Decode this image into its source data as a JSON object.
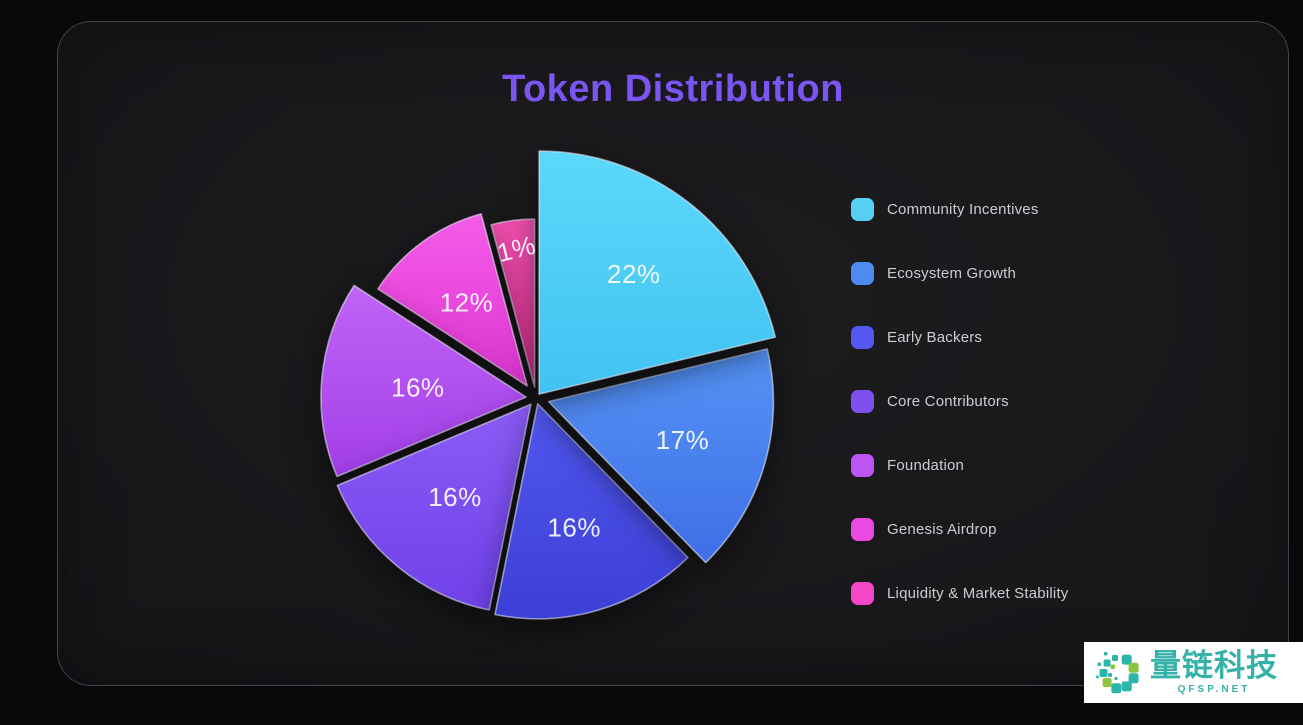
{
  "page": {
    "background_color": "#09090b",
    "panel_background": "#17171a",
    "panel_border_color": "#8a9098"
  },
  "chart_data": {
    "type": "pie",
    "title": "Token Distribution",
    "title_color": "#7b55f2",
    "unit": "%",
    "categories": [
      "Community Incentives",
      "Ecosystem Growth",
      "Early Backers",
      "Core Contributors",
      "Foundation",
      "Genesis Airdrop",
      "Liquidity & Market Stability"
    ],
    "values": [
      22,
      17,
      16,
      16,
      16,
      12,
      1
    ],
    "colors": [
      "#57d0f4",
      "#4d8bf0",
      "#5557f2",
      "#7e50f0",
      "#bb55f3",
      "#ea4ae2",
      "#f447c8"
    ],
    "slice_gradients": [
      [
        "#5cd8fb",
        "#41c2f2"
      ],
      [
        "#5594f6",
        "#3f6ee6"
      ],
      [
        "#5158f0",
        "#3c3fd6"
      ],
      [
        "#8a5cf6",
        "#6f41e8"
      ],
      [
        "#c063f6",
        "#a23fe8"
      ],
      [
        "#f55ce9",
        "#dd35d0"
      ],
      [
        "#f150b0",
        "#d62f8d"
      ]
    ],
    "label_color": "rgba(255,255,255,0.9)",
    "legend_position": "right",
    "legend_text_color": "#cbcdd1",
    "layout": {
      "center": [
        478,
        376
      ],
      "radii": [
        243,
        225,
        215,
        210,
        205,
        178,
        168
      ],
      "explode": [
        5,
        13,
        6,
        8,
        10,
        15,
        11
      ],
      "label_dist": [
        0.63,
        0.62,
        0.6,
        0.57,
        0.53,
        0.58,
        0.83
      ],
      "label_rotate": [
        0,
        0,
        0,
        0,
        0,
        0,
        -14
      ],
      "min_angle_deg": 15,
      "start_angle_deg": 0
    }
  },
  "watermark": {
    "brand": "量链科技",
    "domain": "QFSP.NET",
    "text_color": "#35b2a7",
    "background": "#ffffff",
    "logo_teal": "#2cb5a8",
    "logo_green": "#8bc53f"
  }
}
